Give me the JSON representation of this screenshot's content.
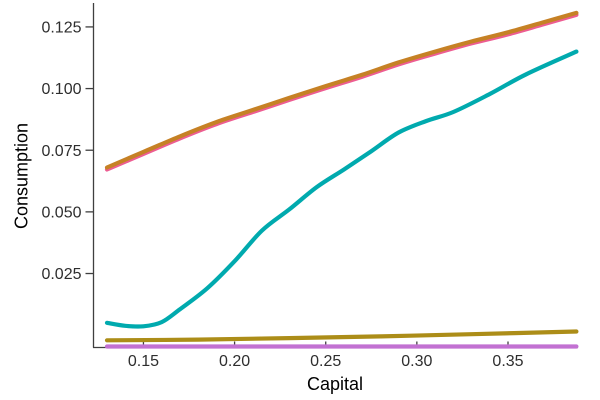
{
  "figure": {
    "background": "#ffffff"
  },
  "chart_data": {
    "type": "line",
    "title": "",
    "xlabel": "Capital",
    "ylabel": "Consumption",
    "xlim": [
      0.1226,
      0.3884
    ],
    "ylim": [
      -0.005,
      0.1347
    ],
    "grid": false,
    "legend": "none",
    "axis_color": "#3f3f3f",
    "text_color": "#2e2e2e",
    "line_width": 4.2,
    "xticks": {
      "values": [
        0.15,
        0.2,
        0.25,
        0.3,
        0.35
      ],
      "labels": [
        "0.15",
        "0.20",
        "0.25",
        "0.30",
        "0.35"
      ]
    },
    "yticks": {
      "values": [
        0.025,
        0.05,
        0.075,
        0.1,
        0.125
      ],
      "labels": [
        "0.025",
        "0.050",
        "0.075",
        "0.100",
        "0.125"
      ]
    },
    "series": [
      {
        "id": "series-lavender",
        "color": "#c271d2",
        "x": [
          0.13,
          0.2,
          0.3,
          0.3875
        ],
        "y": [
          -0.0046,
          -0.0046,
          -0.0046,
          -0.0046
        ]
      },
      {
        "id": "series-olive",
        "color": "#ac8d18",
        "x": [
          0.13,
          0.18,
          0.23,
          0.28,
          0.33,
          0.3875
        ],
        "y": [
          -0.0021,
          -0.0018,
          -0.0012,
          -0.0005,
          0.0004,
          0.0015
        ]
      },
      {
        "id": "series-teal",
        "color": "#00aaae",
        "x": [
          0.13,
          0.14,
          0.15,
          0.16,
          0.17,
          0.185,
          0.2,
          0.215,
          0.23,
          0.245,
          0.26,
          0.275,
          0.29,
          0.305,
          0.32,
          0.34,
          0.36,
          0.3875
        ],
        "y": [
          0.005,
          0.0038,
          0.0036,
          0.0053,
          0.0105,
          0.019,
          0.03,
          0.0424,
          0.051,
          0.06,
          0.0672,
          0.0746,
          0.0822,
          0.0868,
          0.0905,
          0.0978,
          0.1058,
          0.115
        ]
      },
      {
        "id": "series-pink",
        "color": "#ed5d92",
        "x": [
          0.13,
          0.15,
          0.17,
          0.19,
          0.21,
          0.23,
          0.25,
          0.27,
          0.29,
          0.31,
          0.33,
          0.35,
          0.37,
          0.3875
        ],
        "y": [
          0.0672,
          0.0735,
          0.0798,
          0.0856,
          0.0905,
          0.0954,
          0.1002,
          0.1048,
          0.1098,
          0.1142,
          0.1183,
          0.122,
          0.1262,
          0.1299
        ]
      },
      {
        "id": "series-orange",
        "color": "#c68125",
        "x": [
          0.13,
          0.15,
          0.17,
          0.19,
          0.21,
          0.23,
          0.25,
          0.27,
          0.29,
          0.31,
          0.33,
          0.35,
          0.37,
          0.3875
        ],
        "y": [
          0.068,
          0.0743,
          0.0806,
          0.0864,
          0.0913,
          0.0962,
          0.101,
          0.1056,
          0.1106,
          0.115,
          0.1191,
          0.1228,
          0.127,
          0.1307
        ]
      }
    ]
  }
}
